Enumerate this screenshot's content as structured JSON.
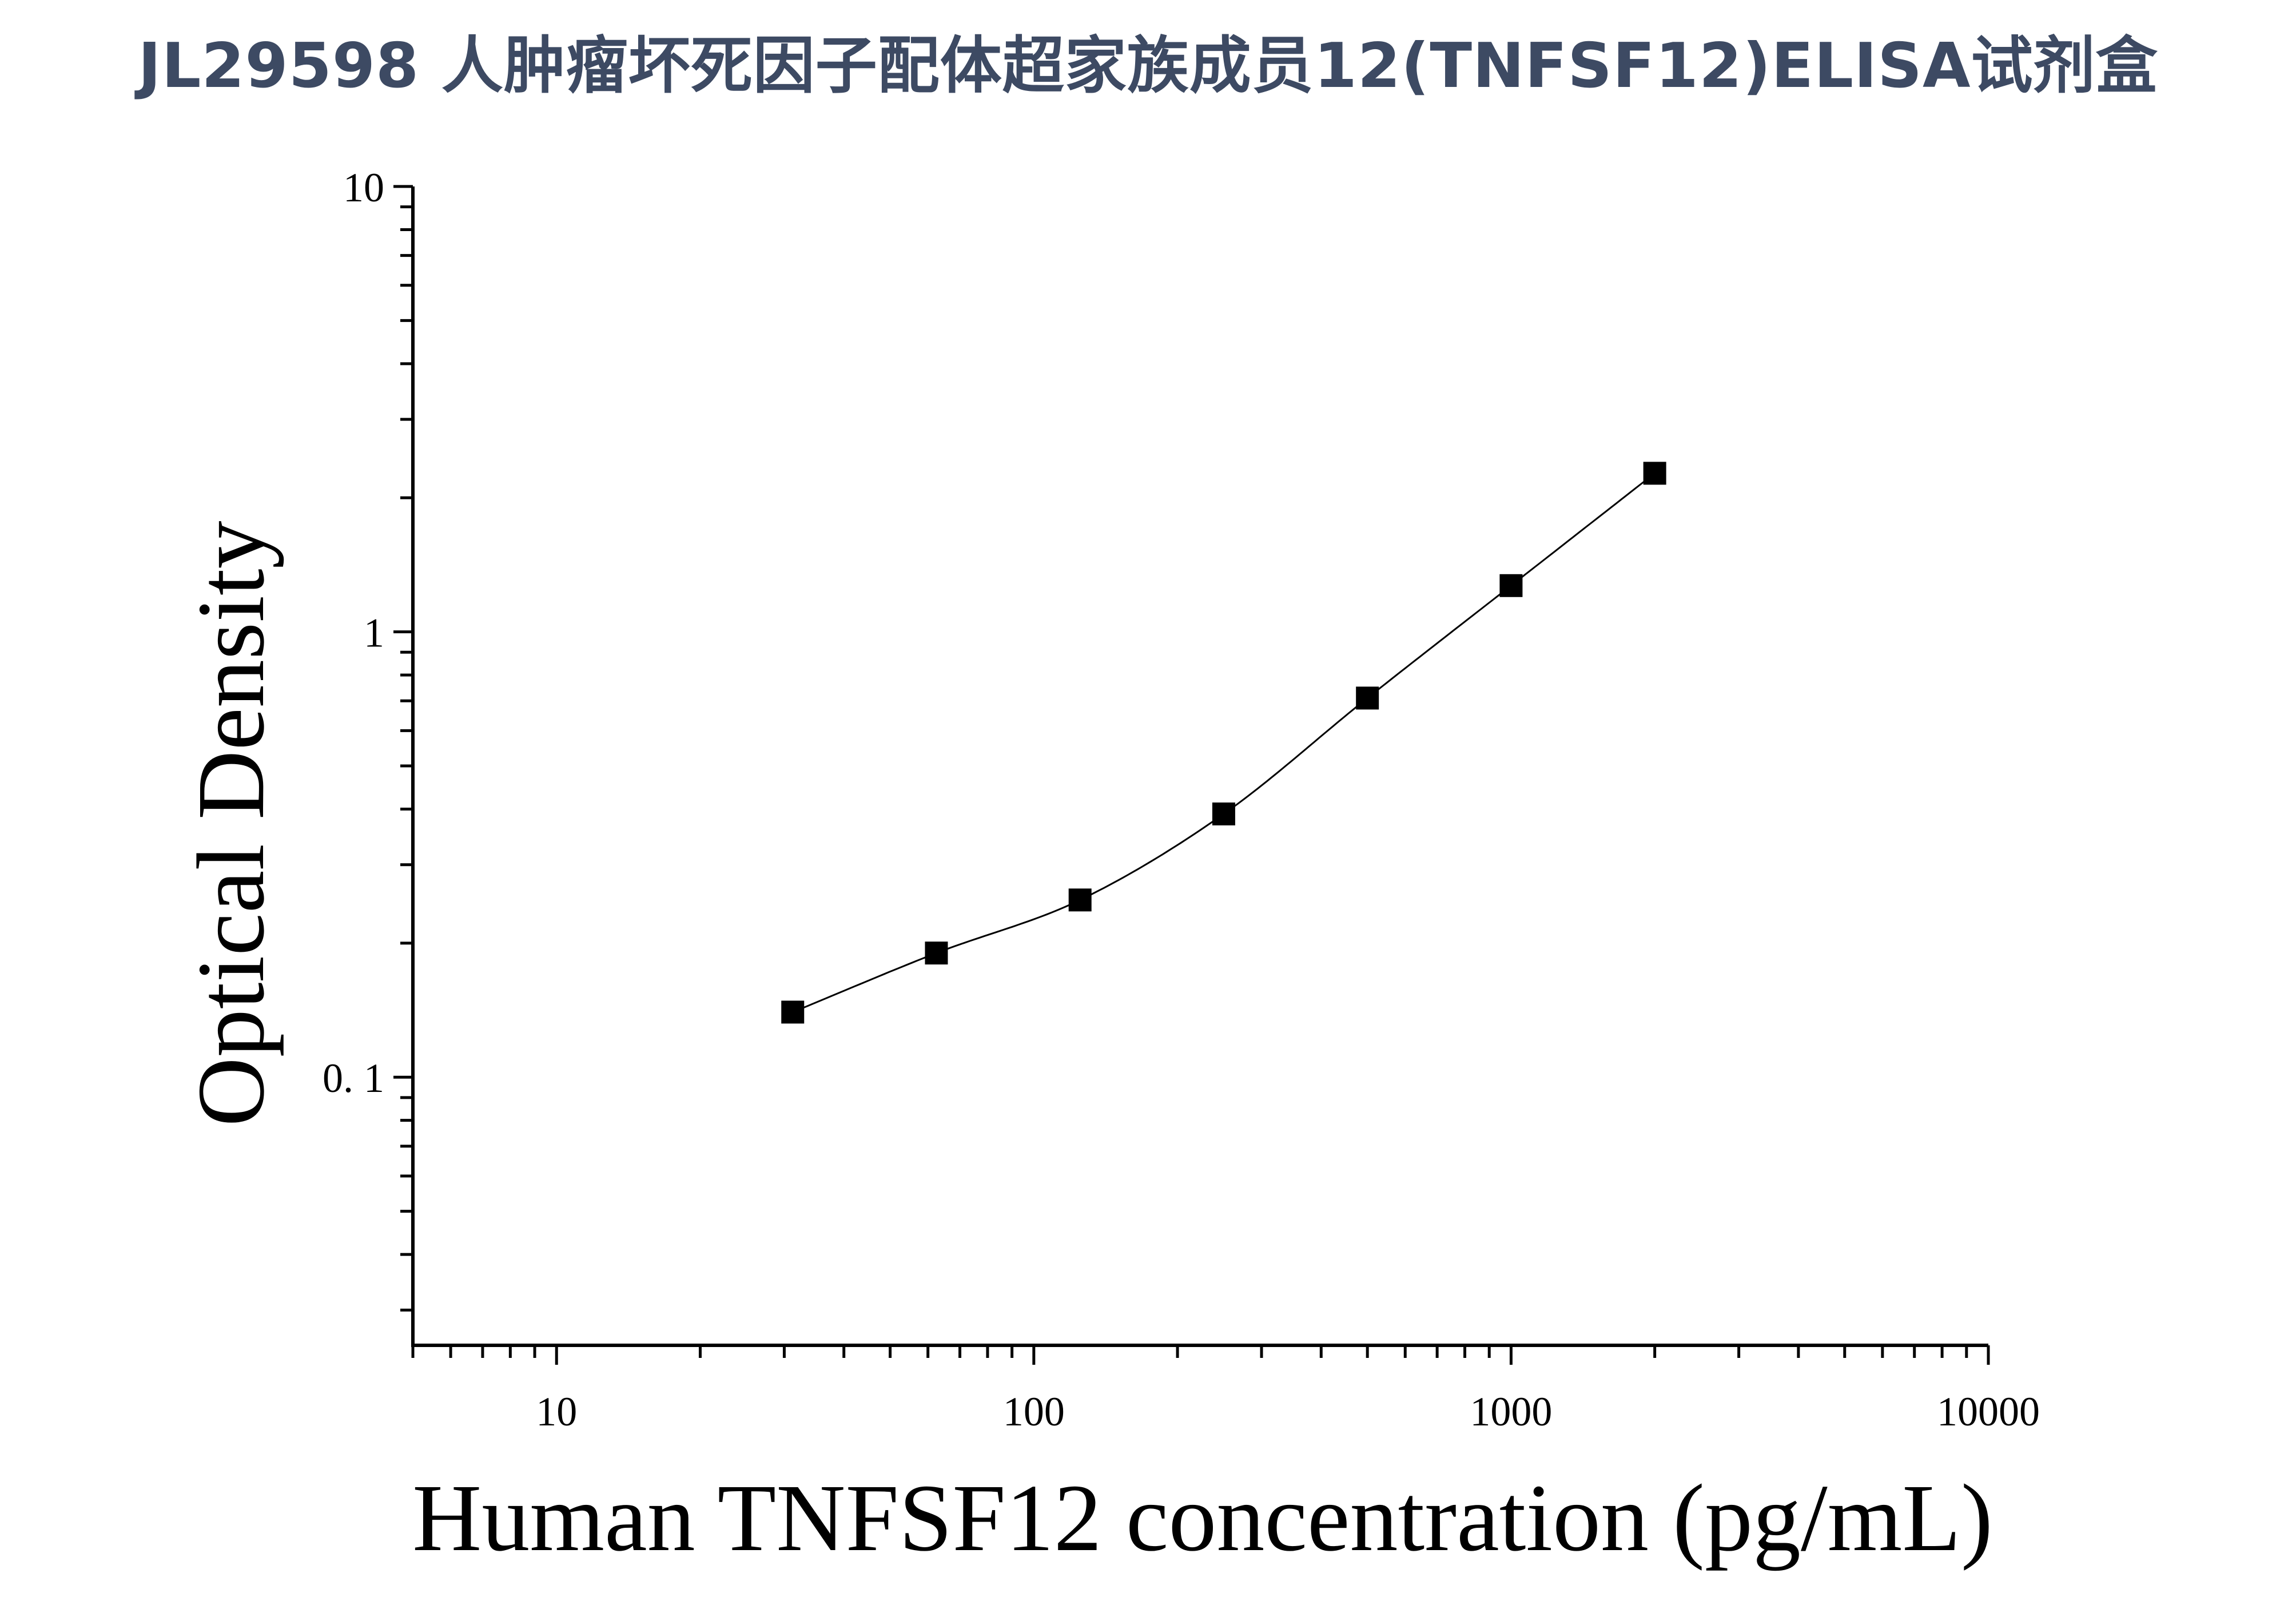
{
  "chart_data": {
    "type": "scatter",
    "title": "JL29598 人肿瘤坏死因子配体超家族成员12(TNFSF12)ELISA试剂盒",
    "xlabel": "Human TNFSF12 concentration (pg/mL)",
    "ylabel": "Optical Density",
    "x_scale": "log",
    "y_scale": "log",
    "xlim": [
      5,
      10000
    ],
    "ylim": [
      0.025,
      10
    ],
    "x_ticks": [
      "10",
      "100",
      "1000",
      "10000"
    ],
    "y_ticks": [
      "0. 1",
      "1",
      "10"
    ],
    "series": [
      {
        "x": [
          31.25,
          62.5,
          125,
          250,
          500,
          1000,
          2000
        ],
        "y": [
          0.14,
          0.19,
          0.25,
          0.39,
          0.71,
          1.27,
          2.27
        ]
      }
    ],
    "fit_curve": true,
    "grid": false,
    "legend": "none",
    "colors": {
      "marker": "#000000",
      "line": "#000000",
      "title": "#3d4a63"
    }
  }
}
